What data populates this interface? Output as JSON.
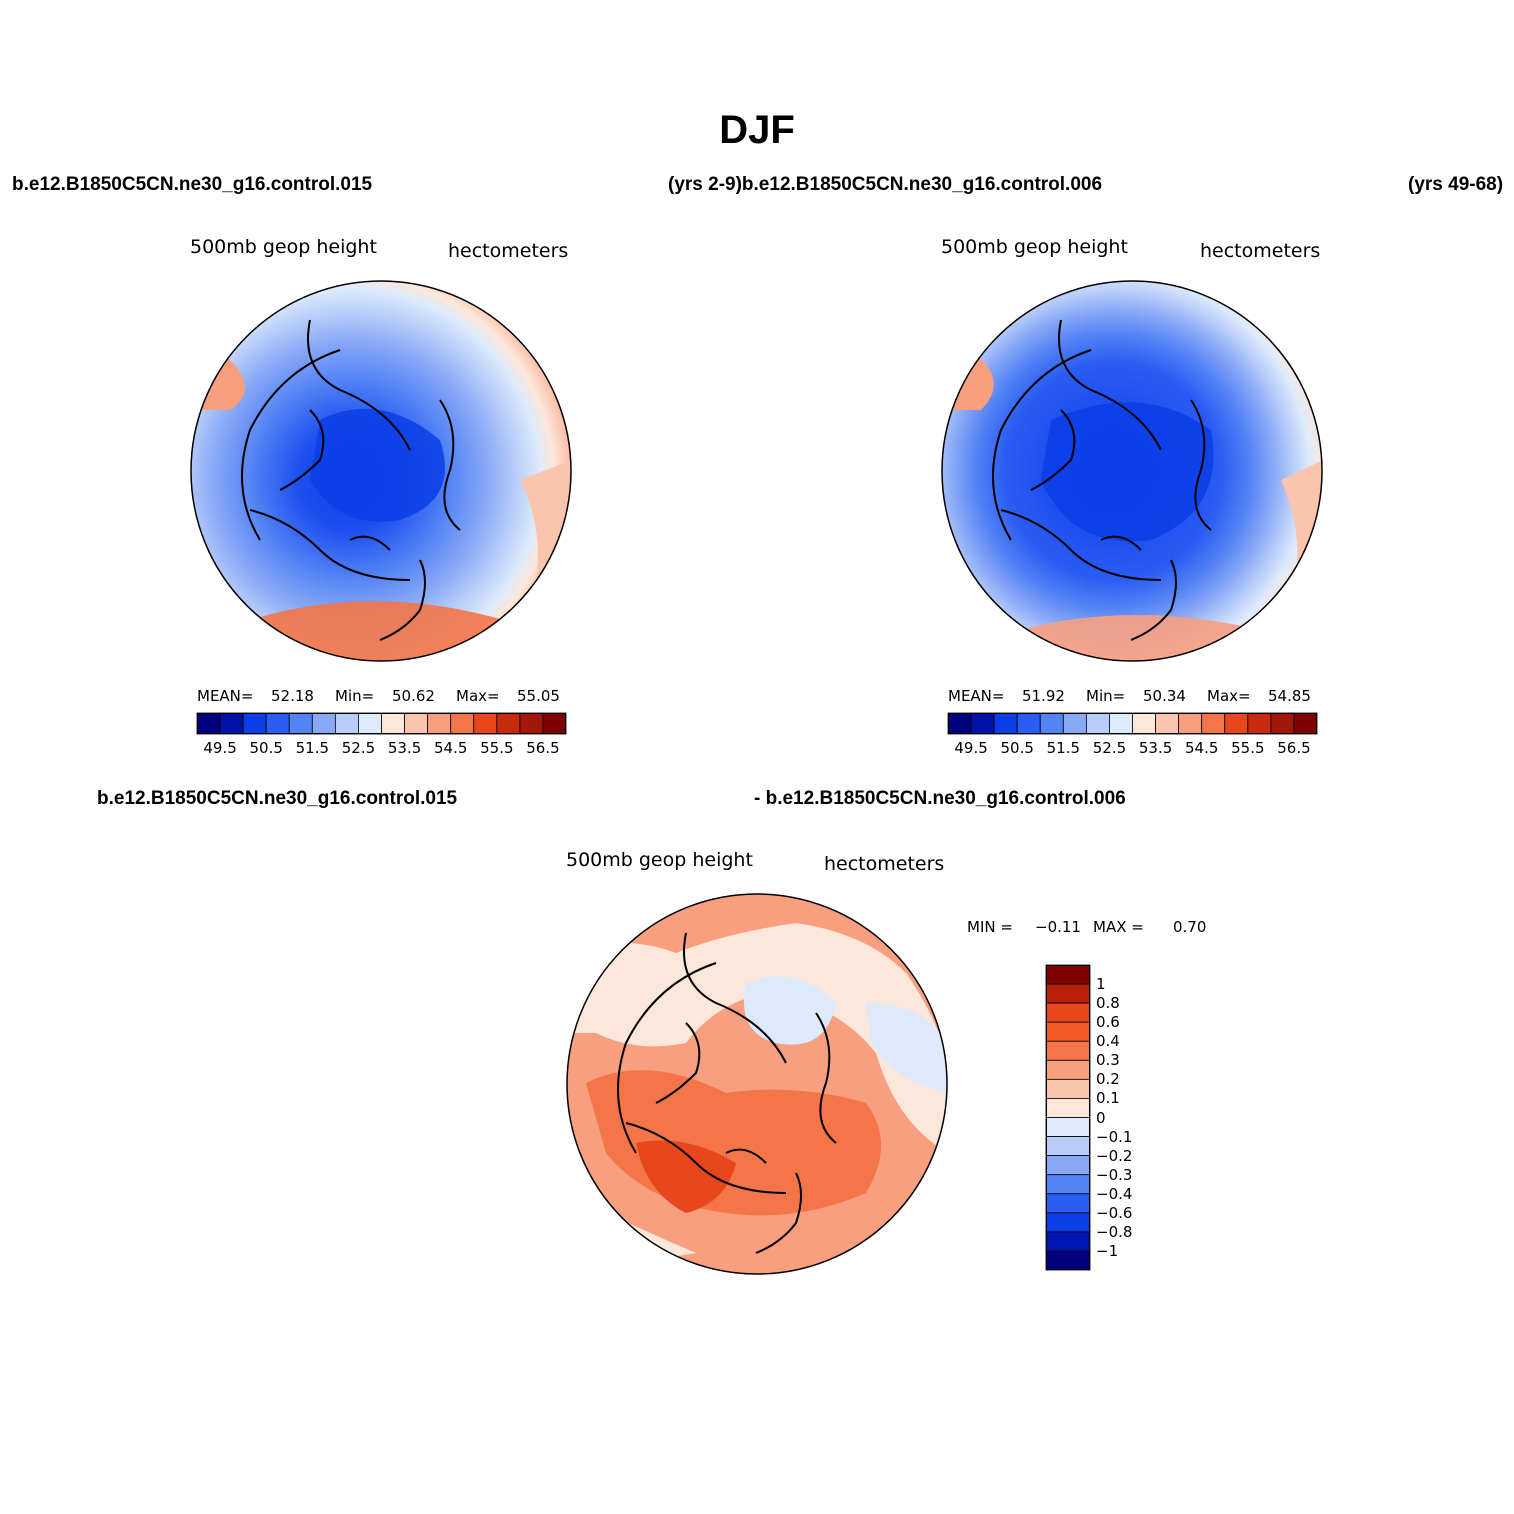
{
  "title": "DJF",
  "top_cases": {
    "case1": "b.e12.B1850C5CN.ne30_g16.control.015",
    "years1_case2": "(yrs 2-9)b.e12.B1850C5CN.ne30_g16.control.006",
    "years2": "(yrs 49-68)"
  },
  "diff_cases": {
    "case1": "b.e12.B1850C5CN.ne30_g16.control.015",
    "case2": "- b.e12.B1850C5CN.ne30_g16.control.006"
  },
  "colors": {
    "abs_levels": [
      "#00007f",
      "#0012a8",
      "#0b3ee6",
      "#2a5df3",
      "#5483f5",
      "#89a9f7",
      "#b8cdf9",
      "#dceafc",
      "#fde7da",
      "#fbc4ad",
      "#f79f7f",
      "#f37548",
      "#e8471d",
      "#c72a0d",
      "#a3160a",
      "#7f0000"
    ],
    "diff_levels": [
      "#00007f",
      "#0016b0",
      "#0b3ee6",
      "#2a5df3",
      "#5483f5",
      "#89a9f7",
      "#b8cdf9",
      "#dceafc",
      "#fde7da",
      "#fbc4ad",
      "#f79f7f",
      "#f37548",
      "#f25c24",
      "#e8471d",
      "#b82008",
      "#7f0000"
    ]
  },
  "chart_data": [
    {
      "type": "heatmap",
      "projection": "north-polar-stereographic",
      "title": "500mb geop height",
      "units": "hectometers",
      "stats": {
        "mean_label": "MEAN=",
        "mean": "52.18",
        "min_label": "Min=",
        "min": "50.62",
        "max_label": "Max=",
        "max": "55.05"
      },
      "colorbar_ticks": [
        "49.5",
        "50.5",
        "51.5",
        "52.5",
        "53.5",
        "54.5",
        "55.5",
        "56.5"
      ],
      "levels": [
        49.5,
        50,
        50.5,
        51,
        51.5,
        52,
        52.5,
        53,
        53.5,
        54,
        54.5,
        55,
        55.5,
        56,
        56.5
      ]
    },
    {
      "type": "heatmap",
      "projection": "north-polar-stereographic",
      "title": "500mb geop height",
      "units": "hectometers",
      "stats": {
        "mean_label": "MEAN=",
        "mean": "51.92",
        "min_label": "Min=",
        "min": "50.34",
        "max_label": "Max=",
        "max": "54.85"
      },
      "colorbar_ticks": [
        "49.5",
        "50.5",
        "51.5",
        "52.5",
        "53.5",
        "54.5",
        "55.5",
        "56.5"
      ],
      "levels": [
        49.5,
        50,
        50.5,
        51,
        51.5,
        52,
        52.5,
        53,
        53.5,
        54,
        54.5,
        55,
        55.5,
        56,
        56.5
      ]
    },
    {
      "type": "heatmap",
      "projection": "north-polar-stereographic",
      "title": "500mb geop height",
      "units": "hectometers",
      "stats": {
        "min_label": "MIN =",
        "min": "−0.11",
        "max_label": "MAX =",
        "max": "0.70"
      },
      "colorbar_ticks": [
        "1",
        "0.8",
        "0.6",
        "0.4",
        "0.3",
        "0.2",
        "0.1",
        "0",
        "−0.1",
        "−0.2",
        "−0.3",
        "−0.4",
        "−0.6",
        "−0.8",
        "−1"
      ]
    }
  ]
}
